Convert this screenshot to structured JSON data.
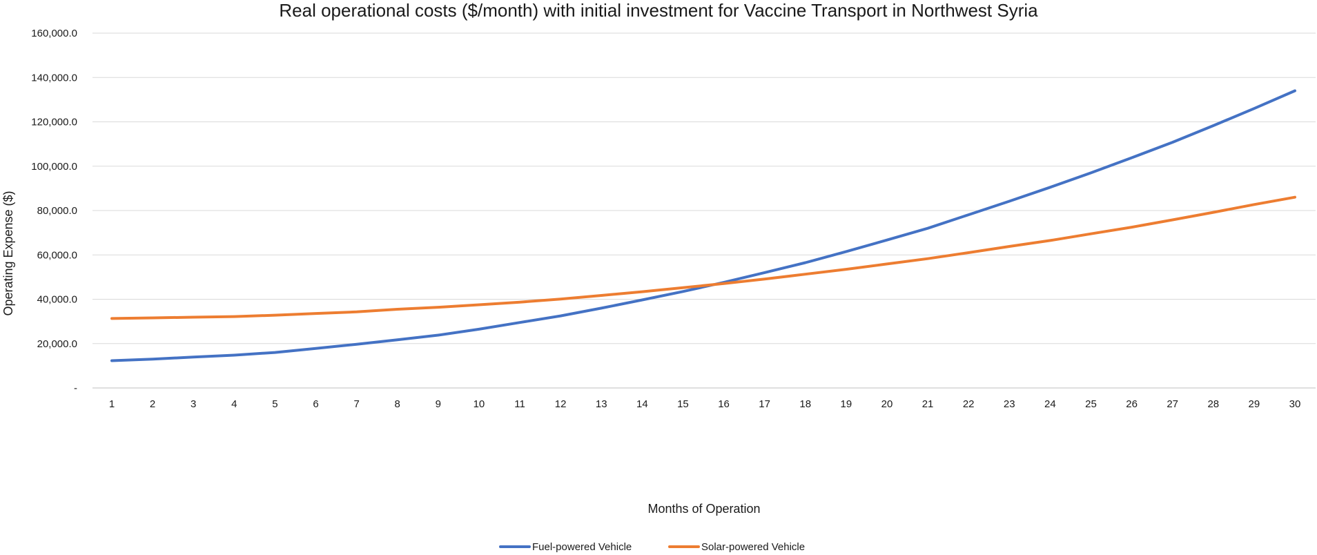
{
  "chart_data": {
    "type": "line",
    "title": "Real operational costs ($/month) with initial investment for Vaccine Transport in Northwest Syria",
    "xlabel": "Months of Operation",
    "ylabel": "Operating Expense ($)",
    "x": [
      1,
      2,
      3,
      4,
      5,
      6,
      7,
      8,
      9,
      10,
      11,
      12,
      13,
      14,
      15,
      16,
      17,
      18,
      19,
      20,
      21,
      22,
      23,
      24,
      25,
      26,
      27,
      28,
      29,
      30
    ],
    "ylim": [
      0,
      160000
    ],
    "yticks": [
      0,
      20000,
      40000,
      60000,
      80000,
      100000,
      120000,
      140000,
      160000
    ],
    "ytick_labels": [
      "-",
      "20,000.0",
      "40,000.0",
      "60,000.0",
      "80,000.0",
      "100,000.0",
      "120,000.0",
      "140,000.0",
      "160,000.0"
    ],
    "grid": true,
    "legend_position": "bottom",
    "series": [
      {
        "name": "Fuel-powered Vehicle",
        "color": "#4472C4",
        "values": [
          12300,
          13000,
          13900,
          14800,
          16000,
          17800,
          19700,
          21700,
          23800,
          26500,
          29500,
          32500,
          36000,
          39700,
          43500,
          47600,
          52000,
          56500,
          61500,
          66700,
          72000,
          78100,
          84200,
          90500,
          97000,
          103800,
          110800,
          118300,
          126000,
          134000
        ]
      },
      {
        "name": "Solar-powered Vehicle",
        "color": "#ED7D31",
        "values": [
          31300,
          31600,
          31900,
          32200,
          32800,
          33600,
          34300,
          35500,
          36400,
          37500,
          38700,
          40100,
          41700,
          43400,
          45200,
          47100,
          49100,
          51300,
          53500,
          55900,
          58300,
          61000,
          63800,
          66500,
          69500,
          72500,
          75800,
          79200,
          82700,
          86000
        ]
      }
    ]
  }
}
